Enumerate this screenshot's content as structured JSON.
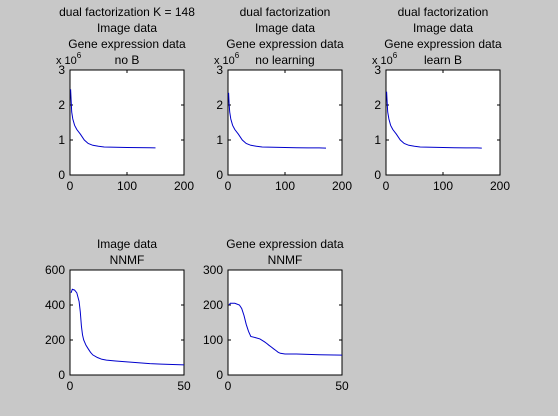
{
  "figure": {
    "background": "#c8c8c8",
    "axes_background": "#ffffff",
    "line_color": "#0000cc"
  },
  "chart_data": [
    {
      "type": "line",
      "title_lines": [
        "dual factorization K = 148",
        "Image data",
        "Gene expression data",
        "no B"
      ],
      "exponent_label": "x 10",
      "exponent_power": "6",
      "xlim": [
        0,
        200
      ],
      "ylim": [
        0,
        3000000
      ],
      "xticks": [
        0,
        100,
        200
      ],
      "yticks": [
        0,
        1000000,
        2000000,
        3000000
      ],
      "xtick_labels": [
        "0",
        "100",
        "200"
      ],
      "ytick_labels": [
        "0",
        "1",
        "2",
        "3"
      ],
      "series": [
        {
          "x": [
            1,
            2,
            3,
            5,
            8,
            12,
            18,
            25,
            32,
            40,
            50,
            60,
            80,
            100,
            120,
            140,
            150
          ],
          "y": [
            2450000,
            2150000,
            1800000,
            1600000,
            1420000,
            1300000,
            1170000,
            1000000,
            900000,
            850000,
            820000,
            800000,
            790000,
            785000,
            782000,
            780000,
            775000
          ]
        }
      ]
    },
    {
      "type": "line",
      "title_lines": [
        "dual factorization",
        "Image data",
        "Gene expression data",
        "no learning"
      ],
      "exponent_label": "x 10",
      "exponent_power": "6",
      "xlim": [
        0,
        200
      ],
      "ylim": [
        0,
        3000000
      ],
      "xticks": [
        0,
        100,
        200
      ],
      "yticks": [
        0,
        1000000,
        2000000,
        3000000
      ],
      "xtick_labels": [
        "0",
        "100",
        "200"
      ],
      "ytick_labels": [
        "0",
        "1",
        "2",
        "3"
      ],
      "series": [
        {
          "x": [
            1,
            2,
            3,
            5,
            8,
            12,
            18,
            25,
            32,
            40,
            50,
            60,
            80,
            100,
            120,
            140,
            160,
            172
          ],
          "y": [
            2350000,
            2050000,
            1800000,
            1600000,
            1420000,
            1300000,
            1170000,
            1000000,
            900000,
            850000,
            820000,
            800000,
            790000,
            785000,
            780000,
            775000,
            775000,
            770000
          ]
        }
      ]
    },
    {
      "type": "line",
      "title_lines": [
        "dual factorization",
        "Image data",
        "Gene expression data",
        "learn B"
      ],
      "exponent_label": "x 10",
      "exponent_power": "6",
      "xlim": [
        0,
        200
      ],
      "ylim": [
        0,
        3000000
      ],
      "xticks": [
        0,
        100,
        200
      ],
      "yticks": [
        0,
        1000000,
        2000000,
        3000000
      ],
      "xtick_labels": [
        "0",
        "100",
        "200"
      ],
      "ytick_labels": [
        "0",
        "1",
        "2",
        "3"
      ],
      "series": [
        {
          "x": [
            1,
            2,
            3,
            5,
            8,
            12,
            18,
            25,
            32,
            40,
            50,
            60,
            80,
            100,
            120,
            140,
            160,
            168
          ],
          "y": [
            2380000,
            2100000,
            1800000,
            1600000,
            1420000,
            1300000,
            1170000,
            1000000,
            900000,
            850000,
            820000,
            800000,
            790000,
            785000,
            780000,
            775000,
            775000,
            770000
          ]
        }
      ]
    },
    {
      "type": "line",
      "title_lines": [
        "Image data",
        "NNMF"
      ],
      "xlim": [
        0,
        50
      ],
      "ylim": [
        0,
        600
      ],
      "xticks": [
        0,
        50
      ],
      "yticks": [
        0,
        200,
        400,
        600
      ],
      "xtick_labels": [
        "0",
        "50"
      ],
      "ytick_labels": [
        "0",
        "200",
        "400",
        "600"
      ],
      "series": [
        {
          "x": [
            0.5,
            1,
            2,
            3,
            4,
            4.5,
            5,
            5.5,
            6,
            7,
            8,
            9,
            10,
            12,
            14,
            16,
            20,
            25,
            30,
            35,
            40,
            45,
            50
          ],
          "y": [
            470,
            490,
            485,
            470,
            420,
            360,
            280,
            230,
            200,
            170,
            150,
            130,
            115,
            100,
            90,
            85,
            80,
            75,
            70,
            65,
            62,
            60,
            58
          ]
        }
      ]
    },
    {
      "type": "line",
      "title_lines": [
        "Gene expression data",
        "NNMF"
      ],
      "xlim": [
        0,
        50
      ],
      "ylim": [
        0,
        300
      ],
      "xticks": [
        0,
        50
      ],
      "yticks": [
        0,
        100,
        200,
        300
      ],
      "xtick_labels": [
        "0",
        "50"
      ],
      "ytick_labels": [
        "0",
        "100",
        "200",
        "300"
      ],
      "series": [
        {
          "x": [
            0.5,
            1,
            3,
            5,
            6,
            7,
            8,
            9,
            10,
            12,
            14,
            16,
            17,
            18,
            19,
            20,
            21,
            22,
            23,
            25,
            30,
            40,
            50
          ],
          "y": [
            200,
            205,
            205,
            200,
            190,
            170,
            145,
            125,
            110,
            107,
            103,
            95,
            90,
            85,
            80,
            75,
            70,
            65,
            62,
            60,
            60,
            58,
            57
          ]
        }
      ]
    }
  ]
}
